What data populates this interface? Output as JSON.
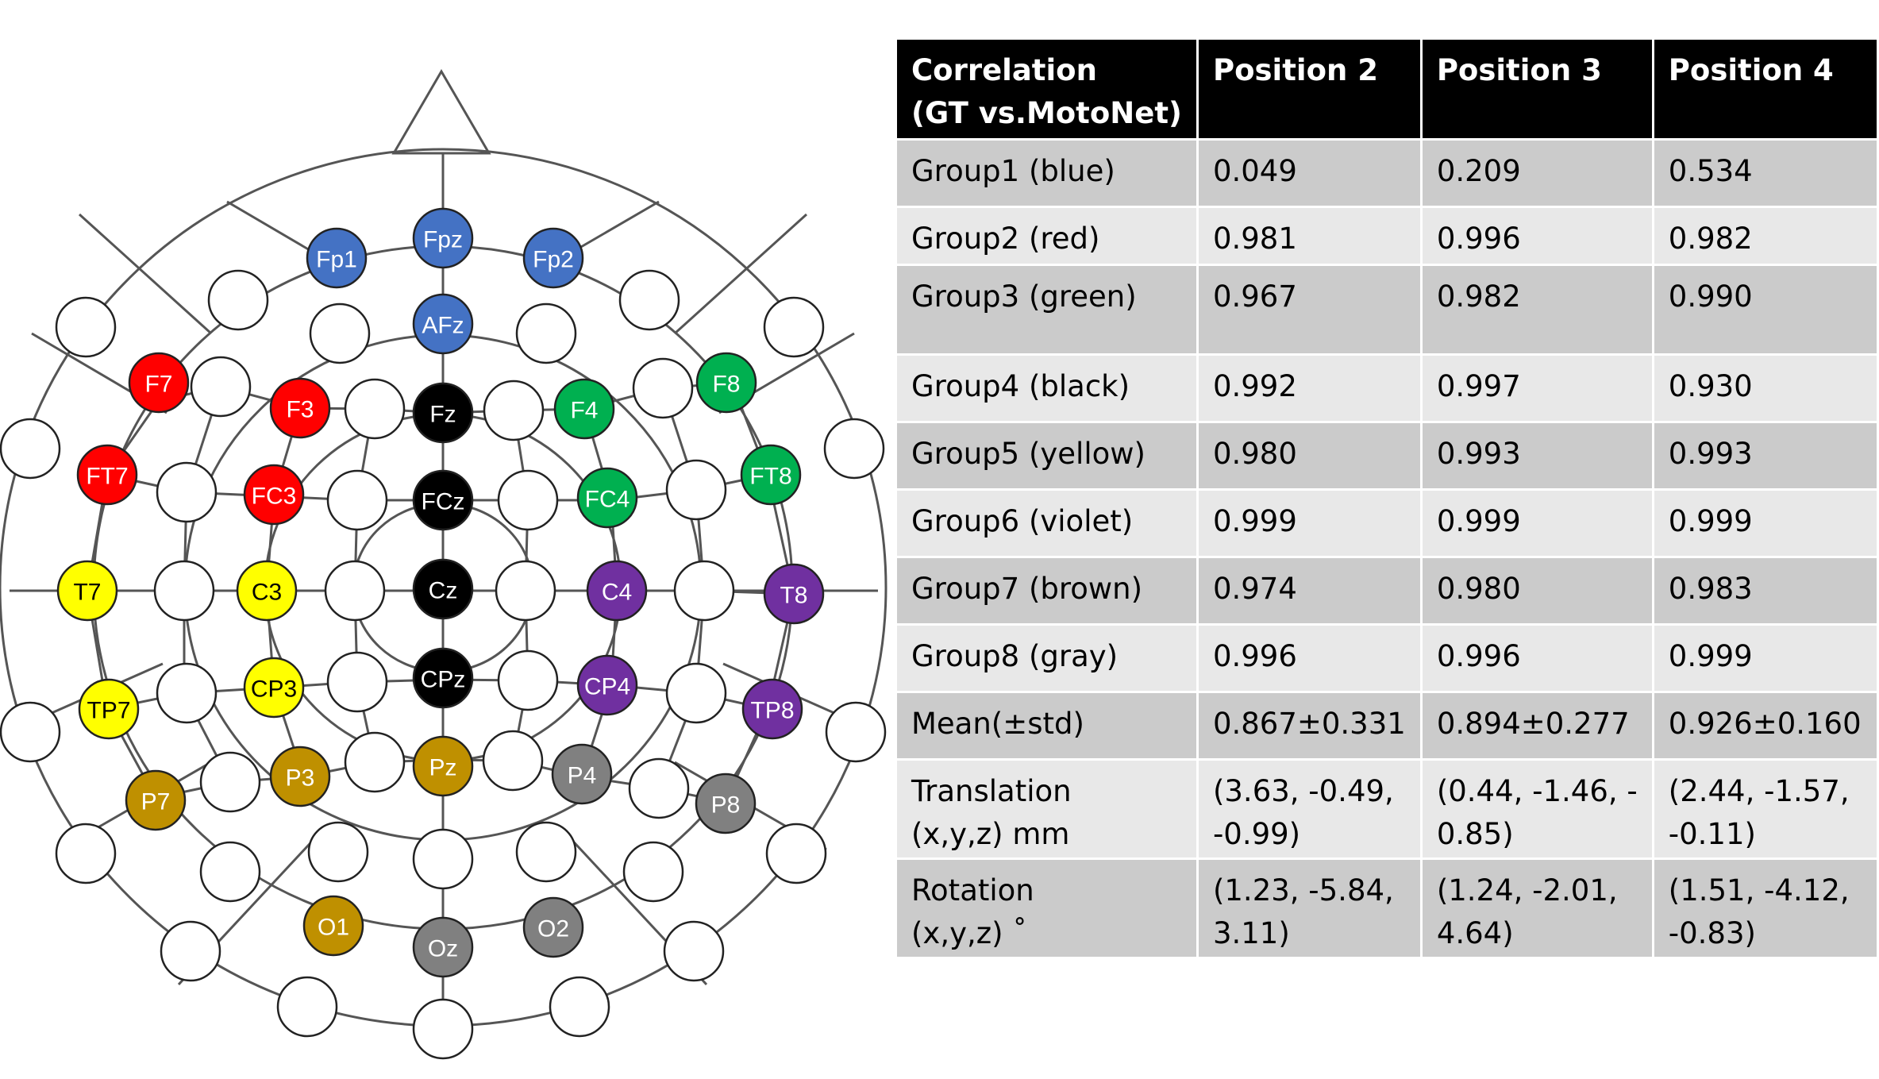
{
  "montage": {
    "electrodes": [
      {
        "label": "Fp1",
        "group": "blue"
      },
      {
        "label": "Fpz",
        "group": "blue"
      },
      {
        "label": "Fp2",
        "group": "blue"
      },
      {
        "label": "AFz",
        "group": "blue"
      },
      {
        "label": "F7",
        "group": "red"
      },
      {
        "label": "F3",
        "group": "red"
      },
      {
        "label": "FT7",
        "group": "red"
      },
      {
        "label": "FC3",
        "group": "red"
      },
      {
        "label": "F4",
        "group": "green"
      },
      {
        "label": "F8",
        "group": "green"
      },
      {
        "label": "FC4",
        "group": "green"
      },
      {
        "label": "FT8",
        "group": "green"
      },
      {
        "label": "Fz",
        "group": "black"
      },
      {
        "label": "FCz",
        "group": "black"
      },
      {
        "label": "Cz",
        "group": "black"
      },
      {
        "label": "CPz",
        "group": "black"
      },
      {
        "label": "T7",
        "group": "yellow"
      },
      {
        "label": "C3",
        "group": "yellow"
      },
      {
        "label": "TP7",
        "group": "yellow"
      },
      {
        "label": "CP3",
        "group": "yellow"
      },
      {
        "label": "C4",
        "group": "violet"
      },
      {
        "label": "T8",
        "group": "violet"
      },
      {
        "label": "CP4",
        "group": "violet"
      },
      {
        "label": "TP8",
        "group": "violet"
      },
      {
        "label": "P7",
        "group": "brown"
      },
      {
        "label": "P3",
        "group": "brown"
      },
      {
        "label": "Pz",
        "group": "brown"
      },
      {
        "label": "O1",
        "group": "brown"
      },
      {
        "label": "P4",
        "group": "gray"
      },
      {
        "label": "P8",
        "group": "gray"
      },
      {
        "label": "Oz",
        "group": "gray"
      },
      {
        "label": "O2",
        "group": "gray"
      }
    ],
    "colors": {
      "blue": "#4472c4",
      "red": "#ff0000",
      "green": "#00b050",
      "black": "#000000",
      "yellow": "#ffff00",
      "violet": "#7030a0",
      "brown": "#bf9000",
      "gray": "#808080",
      "empty": "#ffffff"
    },
    "text_colors": {
      "blue": "#ffffff",
      "red": "#ffffff",
      "green": "#ffffff",
      "black": "#ffffff",
      "yellow": "#000000",
      "violet": "#ffffff",
      "brown": "#ffffff",
      "gray": "#ffffff"
    }
  },
  "table": {
    "headers": [
      [
        "Correlation",
        "(GT vs.MotoNet)"
      ],
      [
        "Position 2"
      ],
      [
        "Position 3"
      ],
      [
        "Position 4"
      ]
    ],
    "rows": [
      [
        [
          "Group1 (blue)"
        ],
        [
          "0.049"
        ],
        [
          "0.209"
        ],
        [
          "0.534"
        ]
      ],
      [
        [
          "Group2 (red)"
        ],
        [
          "0.981"
        ],
        [
          "0.996"
        ],
        [
          "0.982"
        ]
      ],
      [
        [
          "Group3 (green)"
        ],
        [
          "0.967"
        ],
        [
          "0.982"
        ],
        [
          "0.990"
        ]
      ],
      [
        [
          "Group4 (black)"
        ],
        [
          "0.992"
        ],
        [
          "0.997"
        ],
        [
          "0.930"
        ]
      ],
      [
        [
          "Group5 (yellow)"
        ],
        [
          "0.980"
        ],
        [
          "0.993"
        ],
        [
          "0.993"
        ]
      ],
      [
        [
          "Group6 (violet)"
        ],
        [
          "0.999"
        ],
        [
          "0.999"
        ],
        [
          "0.999"
        ]
      ],
      [
        [
          "Group7 (brown)"
        ],
        [
          "0.974"
        ],
        [
          "0.980"
        ],
        [
          "0.983"
        ]
      ],
      [
        [
          "Group8 (gray)"
        ],
        [
          "0.996"
        ],
        [
          "0.996"
        ],
        [
          "0.999"
        ]
      ],
      [
        [
          "Mean(±std)"
        ],
        [
          "0.867±0.331"
        ],
        [
          "0.894±0.277"
        ],
        [
          "0.926±0.160"
        ]
      ],
      [
        [
          "Translation",
          "(x,y,z) mm"
        ],
        [
          "(3.63, -0.49,",
          "-0.99)"
        ],
        [
          "(0.44, -1.46, -",
          "0.85)"
        ],
        [
          "(2.44, -1.57,",
          "-0.11)"
        ]
      ],
      [
        [
          "Rotation",
          "(x,y,z) ˚"
        ],
        [
          "(1.23, -5.84,",
          "3.11)"
        ],
        [
          "(1.24, -2.01,",
          "4.64)"
        ],
        [
          "(1.51, -4.12,",
          "-0.83)"
        ]
      ]
    ]
  }
}
